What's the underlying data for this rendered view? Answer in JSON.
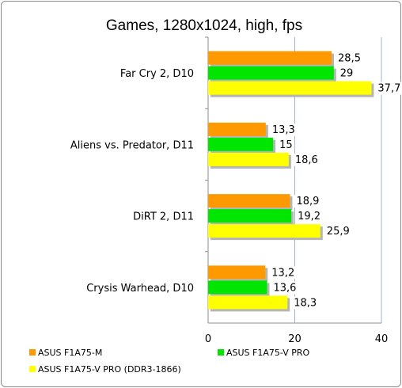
{
  "chart_data": {
    "type": "bar",
    "orientation": "horizontal",
    "title": "Games, 1280x1024, high, fps",
    "categories": [
      "Far Cry 2, D10",
      "Aliens vs. Predator, D11",
      "DiRT 2, D11",
      "Crysis Warhead, D10"
    ],
    "series": [
      {
        "name": "ASUS F1A75-M",
        "color": "#ff9900",
        "values": [
          28.5,
          13.3,
          18.9,
          13.2
        ],
        "labels": [
          "28,5",
          "13,3",
          "18,9",
          "13,2"
        ]
      },
      {
        "name": "ASUS F1A75-V PRO",
        "color": "#00e600",
        "values": [
          29,
          15,
          19.2,
          13.6
        ],
        "labels": [
          "29",
          "15",
          "19,2",
          "13,6"
        ]
      },
      {
        "name": "ASUS F1A75-V PRO (DDR3-1866)",
        "color": "#ffff00",
        "values": [
          37.7,
          18.6,
          25.9,
          18.3
        ],
        "labels": [
          "37,7",
          "18,6",
          "25,9",
          "18,3"
        ]
      }
    ],
    "xlim": [
      0,
      40
    ],
    "ticks": [
      "0",
      "20",
      "40"
    ],
    "tick_values": [
      0,
      20,
      40
    ],
    "grid": true,
    "legend_position": "bottom"
  }
}
